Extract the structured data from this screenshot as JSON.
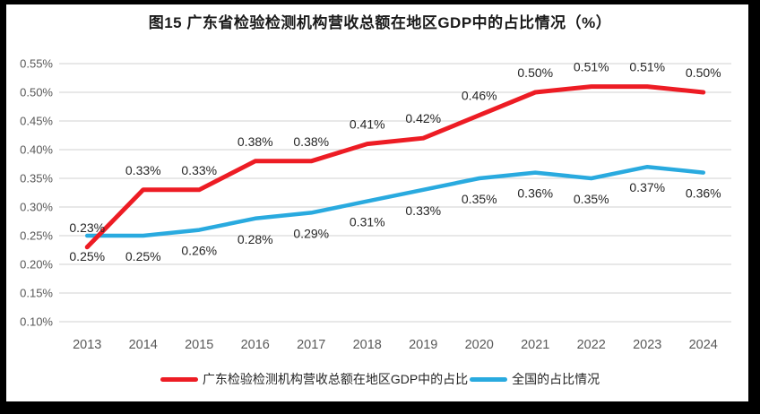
{
  "title": "图15  广东省检验检测机构营收总额在地区GDP中的占比情况（%）",
  "colors": {
    "guangdong": "#ed1c24",
    "national": "#29aadf",
    "grid": "#d9d9d9",
    "axis_text": "#595959",
    "label_text": "#262626"
  },
  "chart_data": {
    "type": "line",
    "title": "图15  广东省检验检测机构营收总额在地区GDP中的占比情况（%）",
    "categories": [
      "2013",
      "2014",
      "2015",
      "2016",
      "2017",
      "2018",
      "2019",
      "2020",
      "2021",
      "2022",
      "2023",
      "2024"
    ],
    "series": [
      {
        "name": "广东检验检测机构营收总额在地区GDP中的占比",
        "color_key": "guangdong",
        "values": [
          0.23,
          0.33,
          0.33,
          0.38,
          0.38,
          0.41,
          0.42,
          0.46,
          0.5,
          0.51,
          0.51,
          0.5
        ],
        "labels": [
          "0.23%",
          "0.33%",
          "0.33%",
          "0.38%",
          "0.38%",
          "0.41%",
          "0.42%",
          "0.46%",
          "0.50%",
          "0.51%",
          "0.51%",
          "0.50%"
        ],
        "label_position": "above"
      },
      {
        "name": "全国的占比情况",
        "color_key": "national",
        "values": [
          0.25,
          0.25,
          0.26,
          0.28,
          0.29,
          0.31,
          0.33,
          0.35,
          0.36,
          0.35,
          0.37,
          0.36
        ],
        "labels": [
          "0.25%",
          "0.25%",
          "0.26%",
          "0.28%",
          "0.29%",
          "0.31%",
          "0.33%",
          "0.35%",
          "0.36%",
          "0.35%",
          "0.37%",
          "0.36%"
        ],
        "label_position": "below"
      }
    ],
    "ylim": [
      0.1,
      0.55
    ],
    "ytick_labels": [
      "0.55%",
      "0.50%",
      "0.45%",
      "0.40%",
      "0.35%",
      "0.30%",
      "0.25%",
      "0.20%",
      "0.15%",
      "0.10%"
    ],
    "xlabel": "",
    "ylabel": "",
    "grid": true,
    "legend_position": "bottom"
  }
}
